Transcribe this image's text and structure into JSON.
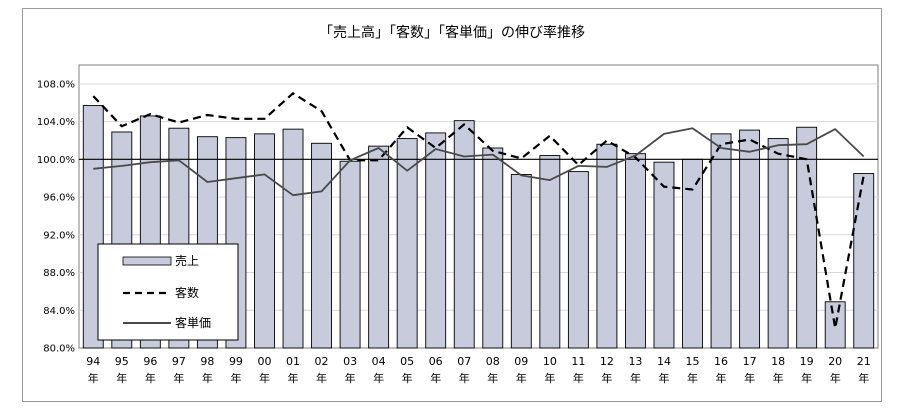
{
  "chart_data": {
    "type": "bar",
    "title": "「売上高」「客数」「客単価」の伸び率推移",
    "categories": [
      "94",
      "95",
      "96",
      "97",
      "98",
      "99",
      "00",
      "01",
      "02",
      "03",
      "04",
      "05",
      "06",
      "07",
      "08",
      "09",
      "10",
      "11",
      "12",
      "13",
      "14",
      "15",
      "16",
      "17",
      "18",
      "19",
      "20",
      "21"
    ],
    "category_suffix": "年",
    "ylim": [
      80.0,
      110.0
    ],
    "yticks": [
      "80.0%",
      "84.0%",
      "88.0%",
      "92.0%",
      "96.0%",
      "100.0%",
      "104.0%",
      "108.0%"
    ],
    "ytick_values": [
      80,
      84,
      88,
      92,
      96,
      100,
      104,
      108
    ],
    "reference_line": 100.0,
    "series": [
      {
        "name": "売上",
        "kind": "bar",
        "color": "#c7cbdb",
        "values": [
          105.7,
          102.9,
          104.6,
          103.3,
          102.4,
          102.3,
          102.7,
          103.2,
          101.7,
          99.8,
          101.4,
          102.2,
          102.8,
          104.1,
          101.2,
          98.4,
          100.4,
          98.7,
          101.6,
          100.6,
          99.7,
          100.0,
          102.7,
          103.1,
          102.2,
          103.4,
          84.9,
          98.5
        ]
      },
      {
        "name": "客数",
        "kind": "line",
        "style": "dashed",
        "color": "#000000",
        "values": [
          106.7,
          103.5,
          104.8,
          103.9,
          104.7,
          104.3,
          104.3,
          107.0,
          105.1,
          99.9,
          99.9,
          103.4,
          101.2,
          103.7,
          100.9,
          100.1,
          102.5,
          99.4,
          102.0,
          100.2,
          97.1,
          96.8,
          101.6,
          102.1,
          100.6,
          100.0,
          82.1,
          98.3
        ]
      },
      {
        "name": "客単価",
        "kind": "line",
        "style": "solid",
        "color": "#4a4a4a",
        "values": [
          99.0,
          99.3,
          99.7,
          99.9,
          97.6,
          98.0,
          98.4,
          96.2,
          96.6,
          99.9,
          101.2,
          98.8,
          101.1,
          100.3,
          100.5,
          98.3,
          97.8,
          99.3,
          99.2,
          100.4,
          102.7,
          103.3,
          101.2,
          100.8,
          101.5,
          101.6,
          103.2,
          100.3
        ]
      }
    ],
    "legend": {
      "position": "bottom-left",
      "entries": [
        "売上",
        "客数",
        "客単価"
      ]
    }
  }
}
